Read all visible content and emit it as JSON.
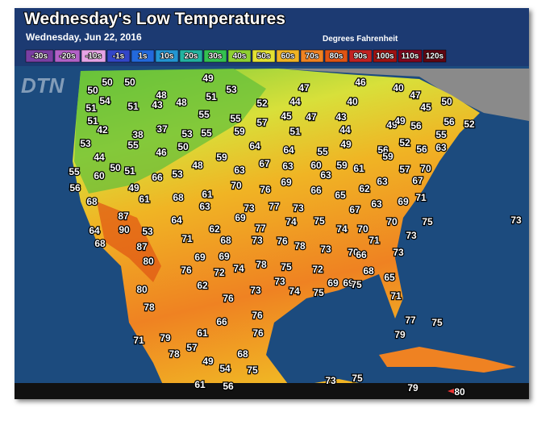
{
  "header": {
    "title": "Wednesday's Low Temperatures",
    "date": "Wednesday, Jun 22, 2016",
    "units": "Degrees Fahrenheit",
    "logo": "DTN"
  },
  "legend": [
    {
      "label": "-30s",
      "color": "#7b3fa3"
    },
    {
      "label": "-20s",
      "color": "#b261c7"
    },
    {
      "label": "-10s",
      "color": "#e6a3e6"
    },
    {
      "label": "-1s",
      "color": "#3346c8"
    },
    {
      "label": "1s",
      "color": "#2369dc"
    },
    {
      "label": "10s",
      "color": "#2395d2"
    },
    {
      "label": "20s",
      "color": "#23b3a0"
    },
    {
      "label": "30s",
      "color": "#34c150"
    },
    {
      "label": "40s",
      "color": "#8fd032"
    },
    {
      "label": "50s",
      "color": "#e3e132"
    },
    {
      "label": "60s",
      "color": "#f0b424"
    },
    {
      "label": "70s",
      "color": "#ef8222"
    },
    {
      "label": "80s",
      "color": "#e05414"
    },
    {
      "label": "90s",
      "color": "#c22222"
    },
    {
      "label": "100s",
      "color": "#a01212"
    },
    {
      "label": "110s",
      "color": "#82061e"
    },
    {
      "label": "120s",
      "color": "#600612"
    }
  ],
  "temperatures": [
    50,
    50,
    49,
    47,
    46,
    40,
    50,
    54,
    48,
    53,
    51,
    48,
    47,
    51,
    51,
    43,
    52,
    44,
    40,
    45,
    50,
    51,
    55,
    55,
    57,
    45,
    47,
    43,
    56,
    52,
    42,
    37,
    38,
    53,
    55,
    59,
    51,
    44,
    49,
    49,
    56,
    55,
    53,
    55,
    50,
    46,
    64,
    64,
    55,
    49,
    56,
    59,
    52,
    56,
    63,
    44,
    59,
    48,
    67,
    63,
    60,
    59,
    61,
    50,
    51,
    66,
    53,
    63,
    70,
    57,
    55,
    60,
    69,
    63,
    63,
    67,
    49,
    61,
    56,
    70,
    76,
    66,
    65,
    62,
    69,
    71,
    61,
    68,
    68,
    63,
    73,
    77,
    74,
    73,
    75,
    67,
    63,
    73,
    87,
    64,
    69,
    70,
    75,
    74,
    70,
    64,
    90,
    53,
    62,
    77,
    71,
    68,
    73,
    76,
    78,
    73,
    71,
    73,
    68,
    87,
    80,
    69,
    69,
    70,
    66,
    73,
    76,
    72,
    74,
    78,
    75,
    72,
    69,
    68,
    73,
    62,
    73,
    74,
    69,
    75,
    65,
    75,
    71,
    80,
    76,
    78,
    76,
    77,
    75,
    66,
    79,
    61,
    76,
    79,
    71,
    57,
    78,
    68,
    49,
    54,
    75,
    61,
    56,
    73,
    75,
    79,
    80
  ]
}
